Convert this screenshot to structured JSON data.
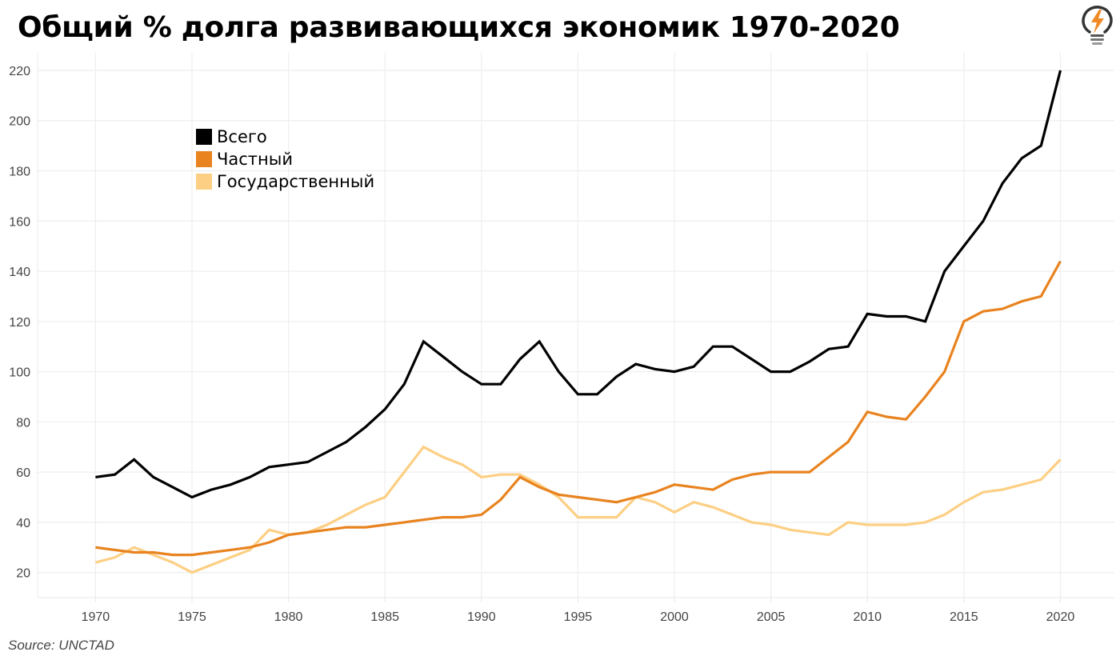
{
  "header": {
    "title": "Общий % долга развивающихся экономик 1970-2020",
    "logo_icon": "lightbulb-lightning-icon"
  },
  "footer": {
    "source": "Source: UNCTAD"
  },
  "colors": {
    "total": "#000000",
    "private": "#E8831F",
    "state": "#FDCF84",
    "grid": "#EEEEEE",
    "tick_text": "#444444",
    "logo_accent": "#F08A24",
    "logo_dark": "#333333"
  },
  "chart_data": {
    "type": "line",
    "title": "Общий % долга развивающихся экономик 1970-2020",
    "xlabel": "",
    "ylabel": "",
    "xlim": [
      1967.0,
      2022.8
    ],
    "ylim": [
      10,
      227
    ],
    "grid": true,
    "legend_position": "top-left",
    "x_ticks": [
      1970,
      1975,
      1980,
      1985,
      1990,
      1995,
      2000,
      2005,
      2010,
      2015,
      2020
    ],
    "y_ticks": [
      20,
      40,
      60,
      80,
      100,
      120,
      140,
      160,
      180,
      200,
      220
    ],
    "x": [
      1970,
      1971,
      1972,
      1973,
      1974,
      1975,
      1976,
      1977,
      1978,
      1979,
      1980,
      1981,
      1982,
      1983,
      1984,
      1985,
      1986,
      1987,
      1988,
      1989,
      1990,
      1991,
      1992,
      1993,
      1994,
      1995,
      1996,
      1997,
      1998,
      1999,
      2000,
      2001,
      2002,
      2003,
      2004,
      2005,
      2006,
      2007,
      2008,
      2009,
      2010,
      2011,
      2012,
      2013,
      2014,
      2015,
      2016,
      2017,
      2018,
      2019,
      2020
    ],
    "series": [
      {
        "key": "total",
        "name": "Всего",
        "values": [
          58,
          59,
          65,
          58,
          54,
          50,
          53,
          55,
          58,
          62,
          63,
          64,
          68,
          72,
          78,
          85,
          95,
          112,
          106,
          100,
          95,
          95,
          105,
          112,
          100,
          91,
          91,
          98,
          103,
          101,
          100,
          102,
          110,
          110,
          105,
          100,
          100,
          104,
          109,
          110,
          123,
          122,
          122,
          120,
          140,
          150,
          160,
          175,
          185,
          190,
          220
        ]
      },
      {
        "key": "private",
        "name": "Частный",
        "values": [
          30,
          29,
          28,
          28,
          27,
          27,
          28,
          29,
          30,
          32,
          35,
          36,
          37,
          38,
          38,
          39,
          40,
          41,
          42,
          42,
          43,
          49,
          58,
          54,
          51,
          50,
          49,
          48,
          50,
          52,
          55,
          54,
          53,
          57,
          59,
          60,
          60,
          60,
          66,
          72,
          84,
          82,
          81,
          90,
          100,
          120,
          124,
          125,
          128,
          130,
          144
        ]
      },
      {
        "key": "state",
        "name": "Государственный",
        "values": [
          24,
          26,
          30,
          27,
          24,
          20,
          23,
          26,
          29,
          37,
          35,
          36,
          39,
          43,
          47,
          50,
          60,
          70,
          66,
          63,
          58,
          59,
          59,
          55,
          50,
          42,
          42,
          42,
          50,
          48,
          44,
          48,
          46,
          43,
          40,
          39,
          37,
          36,
          35,
          40,
          39,
          39,
          39,
          40,
          43,
          48,
          52,
          53,
          55,
          57,
          65
        ]
      }
    ]
  }
}
